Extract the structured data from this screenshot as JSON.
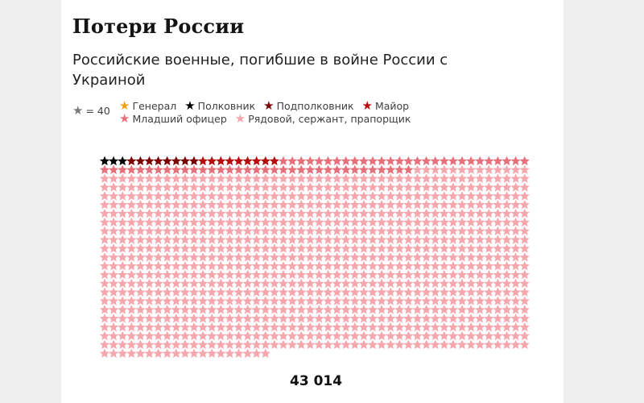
{
  "header": {
    "title": "Потери России",
    "subtitle": "Российские военные, погибшие в войне России с Украиной"
  },
  "legend": {
    "unit_label": "= 40",
    "unit_color": "#7a7a7a",
    "row1": [
      {
        "label": "Генерал",
        "color": "#f2a11a"
      },
      {
        "label": "Полковник",
        "color": "#000000"
      },
      {
        "label": "Подполковник",
        "color": "#7a0000"
      },
      {
        "label": "Майор",
        "color": "#b80c0c"
      }
    ],
    "row2": [
      {
        "label": "Младший офицер",
        "color": "#e8707a"
      },
      {
        "label": "Рядовой, сержант, прапорщик",
        "color": "#f6a6ad"
      }
    ]
  },
  "chart_data": {
    "type": "pictogram",
    "unit": 40,
    "total_label": "43 014",
    "categories": [
      {
        "name": "Полковник",
        "stars": 3,
        "color": "#000000"
      },
      {
        "name": "Подполковник",
        "stars": 8,
        "color": "#7a0000"
      },
      {
        "name": "Майор",
        "stars": 9,
        "color": "#b80c0c"
      },
      {
        "name": "Младший офицер",
        "stars": 63,
        "color": "#e8707a"
      },
      {
        "name": "Рядовой, сержант, прапорщик",
        "stars": 992,
        "color": "#f6a6ad"
      }
    ]
  }
}
